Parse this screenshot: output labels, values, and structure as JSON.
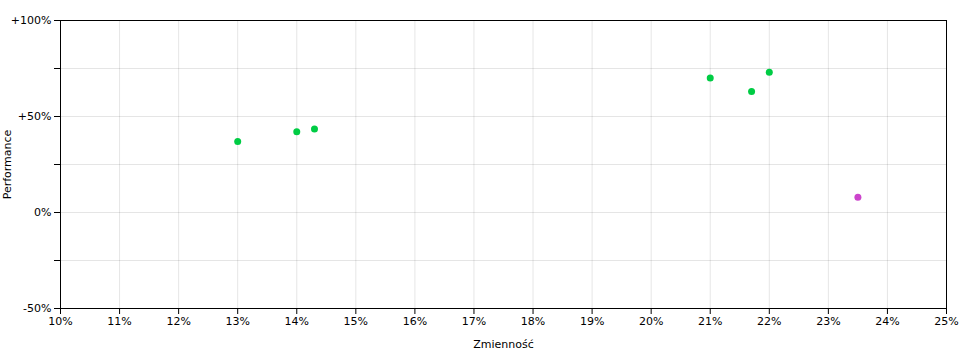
{
  "chart_data": {
    "type": "scatter",
    "xlabel": "Zmienność",
    "ylabel": "Performance",
    "xlim": [
      0.1,
      0.25
    ],
    "ylim": [
      -0.5,
      1.0
    ],
    "xticks": [
      {
        "value": 0.1,
        "label": "10%"
      },
      {
        "value": 0.11,
        "label": "11%"
      },
      {
        "value": 0.12,
        "label": "12%"
      },
      {
        "value": 0.13,
        "label": "13%"
      },
      {
        "value": 0.14,
        "label": "14%"
      },
      {
        "value": 0.15,
        "label": "15%"
      },
      {
        "value": 0.16,
        "label": "16%"
      },
      {
        "value": 0.17,
        "label": "17%"
      },
      {
        "value": 0.18,
        "label": "18%"
      },
      {
        "value": 0.19,
        "label": "19%"
      },
      {
        "value": 0.2,
        "label": "20%"
      },
      {
        "value": 0.21,
        "label": "21%"
      },
      {
        "value": 0.22,
        "label": "22%"
      },
      {
        "value": 0.23,
        "label": "23%"
      },
      {
        "value": 0.24,
        "label": "24%"
      },
      {
        "value": 0.25,
        "label": "25%"
      }
    ],
    "yticks": [
      {
        "value": -0.5,
        "label": "-50%"
      },
      {
        "value": -0.25,
        "label": null
      },
      {
        "value": 0.0,
        "label": "0%"
      },
      {
        "value": 0.25,
        "label": null
      },
      {
        "value": 0.5,
        "label": "+50%"
      },
      {
        "value": 0.75,
        "label": null
      },
      {
        "value": 1.0,
        "label": "+100%"
      }
    ],
    "grid": true,
    "series": [
      {
        "color": "#00cc44",
        "x": [
          0.13,
          0.14,
          0.143,
          0.21,
          0.217,
          0.22
        ],
        "values": [
          0.37,
          0.42,
          0.435,
          0.7,
          0.63,
          0.73
        ]
      },
      {
        "color": "#cc44cc",
        "x": [
          0.235
        ],
        "values": [
          0.08
        ]
      }
    ]
  }
}
